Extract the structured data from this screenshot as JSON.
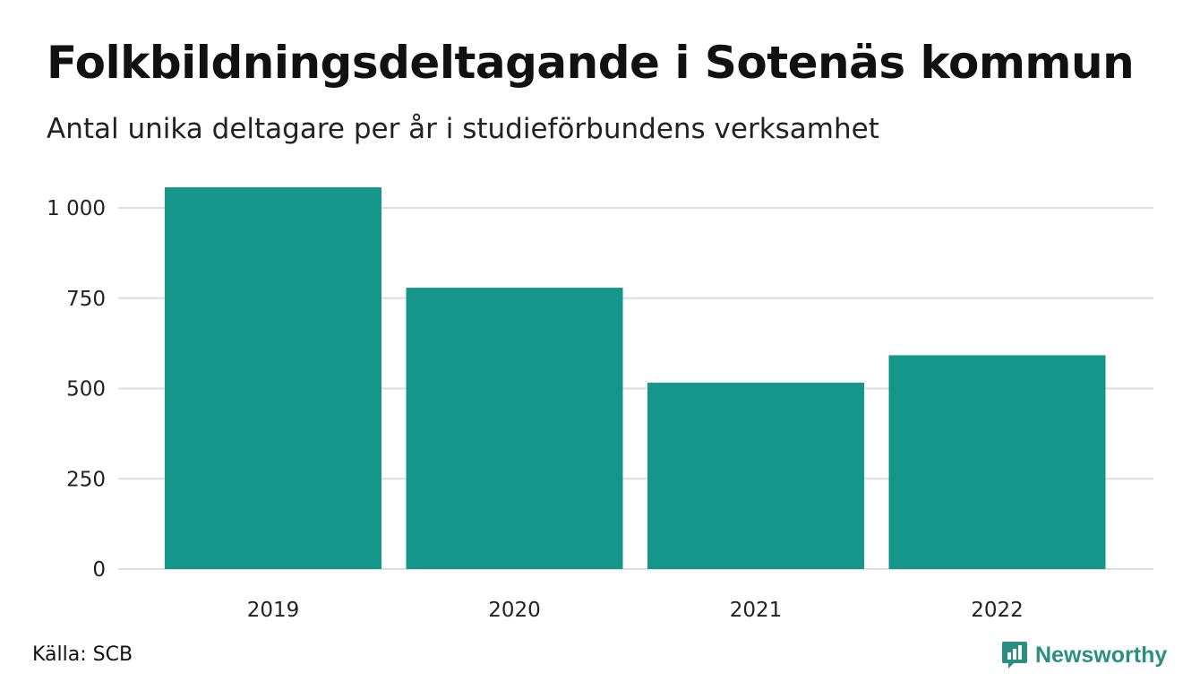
{
  "header": {
    "title": "Folkbildningsdeltagande i Sotenäs kommun",
    "subtitle": "Antal unika deltagare per år i studieförbundens verksamhet"
  },
  "footer": {
    "source": "Källa: SCB",
    "brand": "Newsworthy",
    "brand_icon": "newsworthy-logo-icon"
  },
  "colors": {
    "bar": "#14968a",
    "grid": "#dddddd",
    "brand": "#2a8f80"
  },
  "chart_data": {
    "type": "bar",
    "title": "Folkbildningsdeltagande i Sotenäs kommun",
    "subtitle": "Antal unika deltagare per år i studieförbundens verksamhet",
    "categories": [
      "2019",
      "2020",
      "2021",
      "2022"
    ],
    "values": [
      1057,
      779,
      516,
      592
    ],
    "xlabel": "",
    "ylabel": "",
    "ylim": [
      0,
      1000
    ],
    "yticks": [
      0,
      250,
      500,
      750,
      1000
    ],
    "ytick_labels": [
      "0",
      "250",
      "500",
      "750",
      "1 000"
    ],
    "grid": true,
    "legend": "none"
  }
}
